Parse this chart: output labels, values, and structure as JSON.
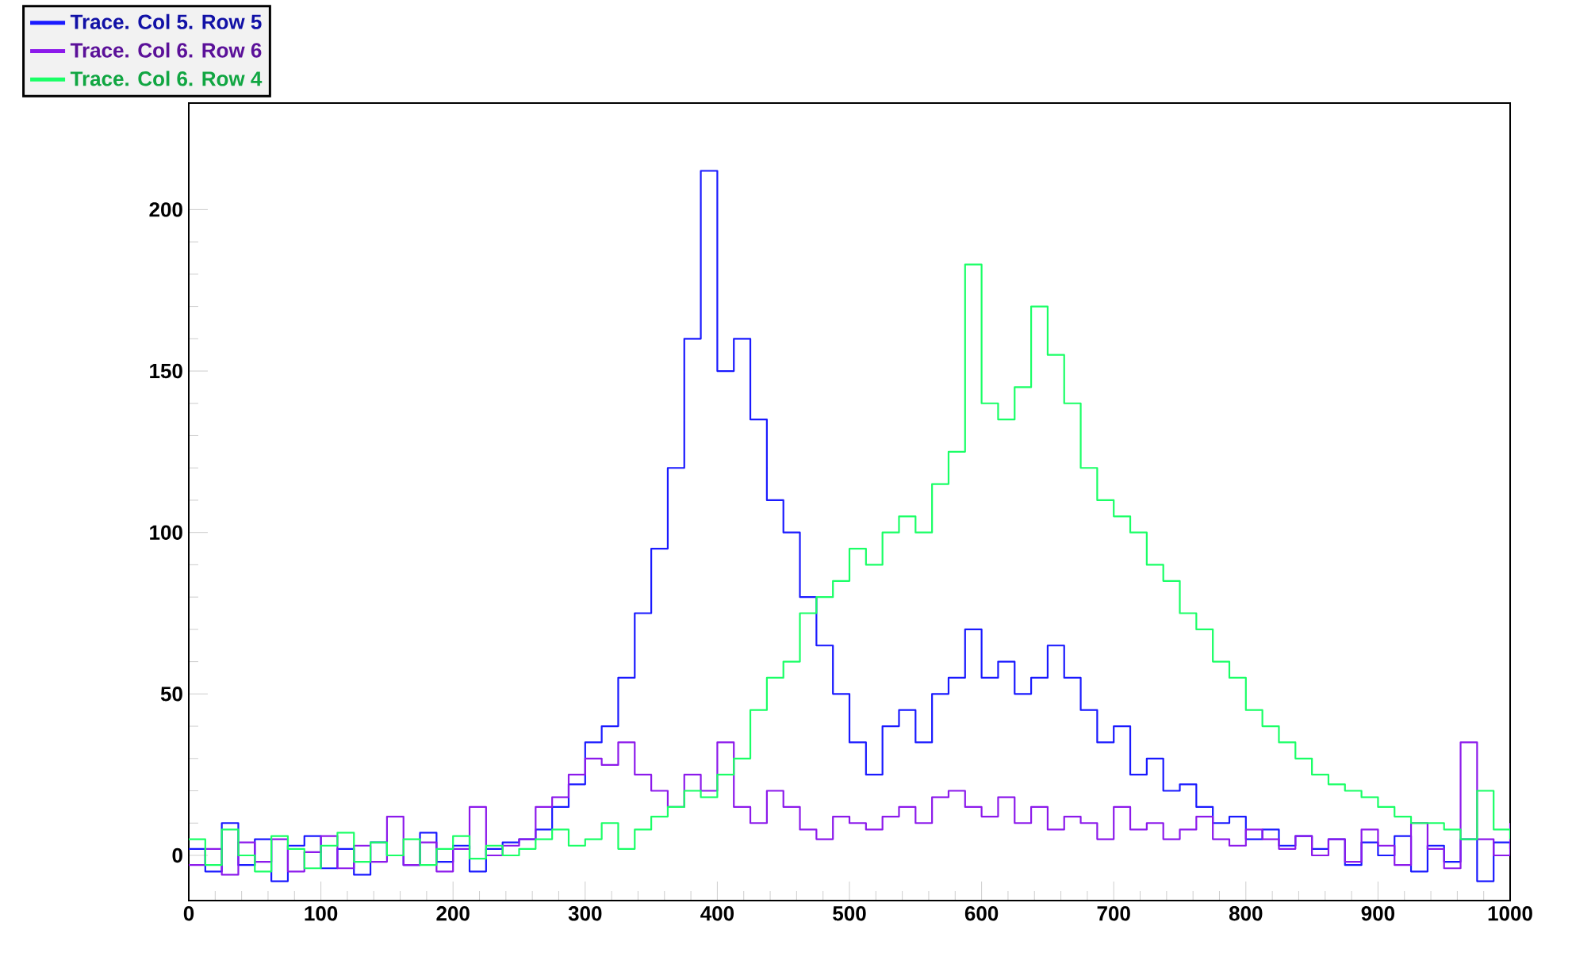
{
  "chart_data": {
    "type": "step",
    "x": [
      0,
      12.5,
      25,
      37.5,
      50,
      62.5,
      75,
      87.5,
      100,
      112.5,
      125,
      137.5,
      150,
      162.5,
      175,
      187.5,
      200,
      212.5,
      225,
      237.5,
      250,
      262.5,
      275,
      287.5,
      300,
      312.5,
      325,
      337.5,
      350,
      362.5,
      375,
      387.5,
      400,
      412.5,
      425,
      437.5,
      450,
      462.5,
      475,
      487.5,
      500,
      512.5,
      525,
      537.5,
      550,
      562.5,
      575,
      587.5,
      600,
      612.5,
      625,
      637.5,
      650,
      662.5,
      675,
      687.5,
      700,
      712.5,
      725,
      737.5,
      750,
      762.5,
      775,
      787.5,
      800,
      812.5,
      825,
      837.5,
      850,
      862.5,
      875,
      887.5,
      900,
      912.5,
      925,
      937.5,
      950,
      962.5,
      975,
      987.5,
      1000
    ],
    "series": [
      {
        "name": "Trace. Col 5. Row 5",
        "color": "#1a1aff",
        "values": [
          2,
          -5,
          10,
          -3,
          5,
          -8,
          3,
          6,
          -4,
          2,
          -6,
          4,
          0,
          -3,
          7,
          -2,
          3,
          -5,
          2,
          4,
          5,
          8,
          15,
          22,
          35,
          40,
          55,
          75,
          95,
          120,
          160,
          212,
          150,
          160,
          135,
          110,
          100,
          80,
          65,
          50,
          35,
          25,
          40,
          45,
          35,
          50,
          55,
          70,
          55,
          60,
          50,
          55,
          65,
          55,
          45,
          35,
          40,
          25,
          30,
          20,
          22,
          15,
          10,
          12,
          5,
          8,
          3,
          6,
          2,
          5,
          -3,
          4,
          0,
          6,
          -5,
          3,
          -2,
          5,
          -8,
          4,
          2
        ]
      },
      {
        "name": "Trace. Col 6. Row 6",
        "color": "#8c1aeb",
        "values": [
          -3,
          2,
          -6,
          4,
          -2,
          5,
          -5,
          1,
          6,
          -4,
          3,
          -2,
          12,
          -3,
          4,
          -5,
          2,
          15,
          0,
          3,
          5,
          15,
          18,
          25,
          30,
          28,
          35,
          25,
          20,
          15,
          25,
          20,
          35,
          15,
          10,
          20,
          15,
          8,
          5,
          12,
          10,
          8,
          12,
          15,
          10,
          18,
          20,
          15,
          12,
          18,
          10,
          15,
          8,
          12,
          10,
          5,
          15,
          8,
          10,
          5,
          8,
          12,
          5,
          3,
          8,
          5,
          2,
          6,
          0,
          5,
          -2,
          8,
          3,
          -3,
          10,
          2,
          -4,
          35,
          5,
          0,
          10
        ]
      },
      {
        "name": "Trace. Col 6. Row 4",
        "color": "#1aff66",
        "values": [
          5,
          -3,
          8,
          0,
          -5,
          6,
          2,
          -4,
          3,
          7,
          -2,
          4,
          0,
          5,
          -3,
          2,
          6,
          -1,
          3,
          0,
          2,
          5,
          8,
          3,
          5,
          10,
          2,
          8,
          12,
          15,
          20,
          18,
          25,
          30,
          45,
          55,
          60,
          75,
          80,
          85,
          95,
          90,
          100,
          105,
          100,
          115,
          125,
          183,
          140,
          135,
          145,
          170,
          155,
          140,
          120,
          110,
          105,
          100,
          90,
          85,
          75,
          70,
          60,
          55,
          45,
          40,
          35,
          30,
          25,
          22,
          20,
          18,
          15,
          12,
          10,
          10,
          8,
          5,
          20,
          8,
          5
        ]
      }
    ],
    "xlim": [
      0,
      1000
    ],
    "ylim": [
      -14,
      233
    ],
    "xticks": [
      0,
      100,
      200,
      300,
      400,
      500,
      600,
      700,
      800,
      900,
      1000
    ],
    "yticks": [
      0,
      50,
      100,
      150,
      200
    ],
    "legend": "top left"
  }
}
